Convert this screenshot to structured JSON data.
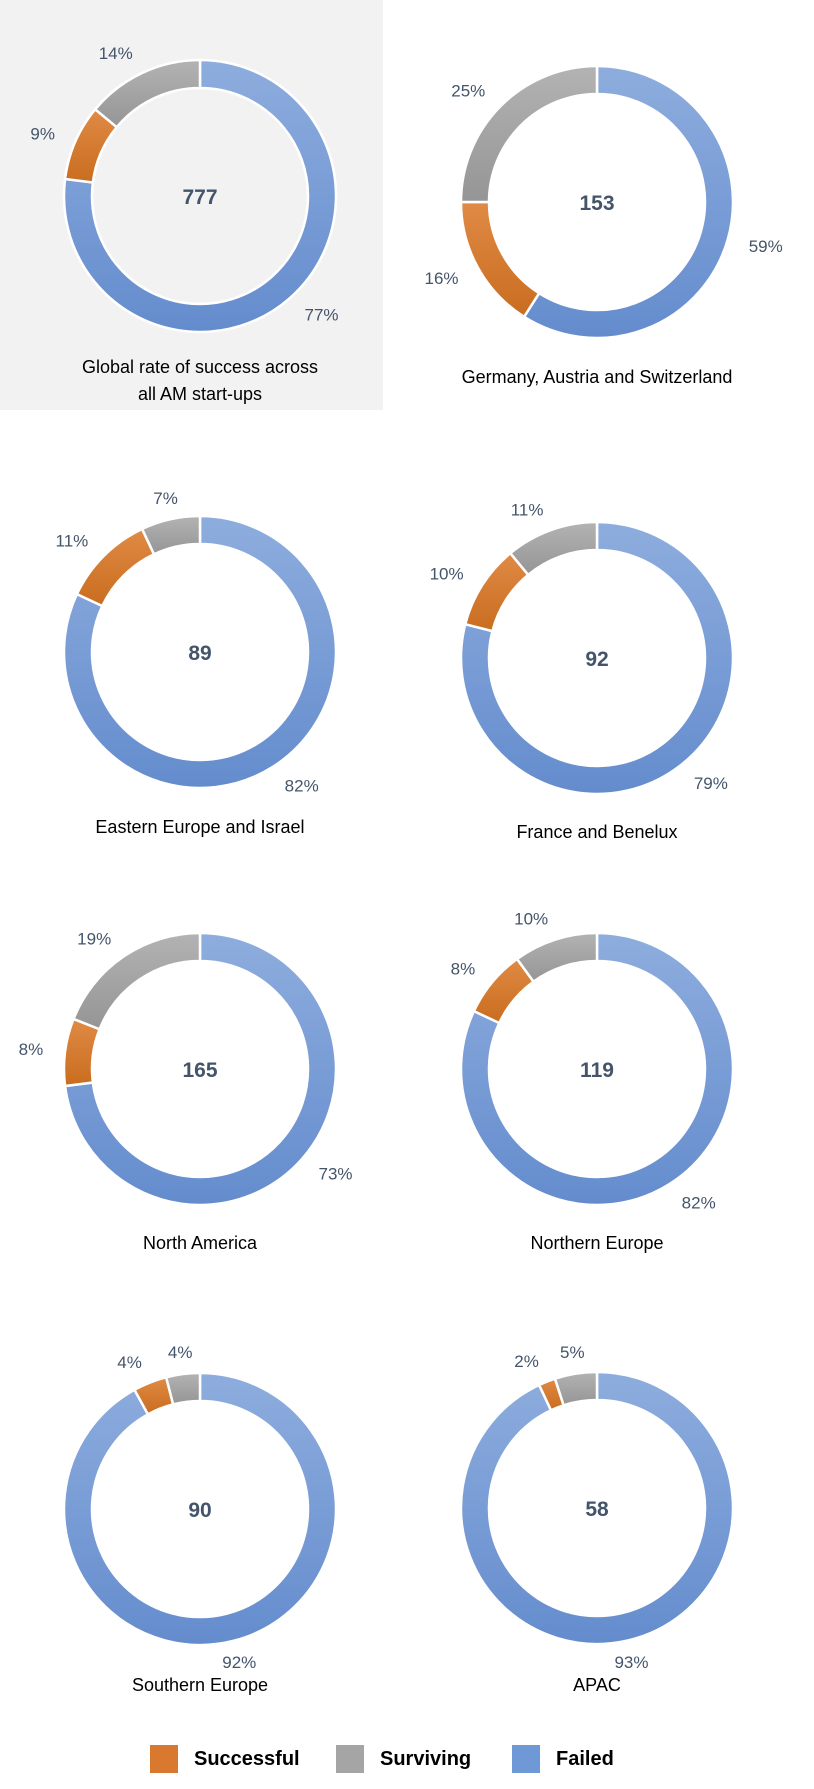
{
  "chart_data": [
    {
      "type": "pie",
      "title": "Global rate of success across all AM start-ups",
      "total": "777",
      "categories": [
        "Failed",
        "Successful",
        "Surviving"
      ],
      "values": [
        77,
        9,
        14
      ],
      "labels": [
        "77%",
        "9%",
        "14%"
      ]
    },
    {
      "type": "pie",
      "title": "Germany, Austria and Switzerland",
      "total": "153",
      "categories": [
        "Failed",
        "Successful",
        "Surviving"
      ],
      "values": [
        59,
        16,
        25
      ],
      "labels": [
        "59%",
        "16%",
        "25%"
      ]
    },
    {
      "type": "pie",
      "title": "Eastern Europe and Israel",
      "total": "89",
      "categories": [
        "Failed",
        "Successful",
        "Surviving"
      ],
      "values": [
        82,
        11,
        7
      ],
      "labels": [
        "82%",
        "11%",
        "7%"
      ]
    },
    {
      "type": "pie",
      "title": "France and Benelux",
      "total": "92",
      "categories": [
        "Failed",
        "Successful",
        "Surviving"
      ],
      "values": [
        79,
        10,
        11
      ],
      "labels": [
        "79%",
        "10%",
        "11%"
      ]
    },
    {
      "type": "pie",
      "title": "North America",
      "total": "165",
      "categories": [
        "Failed",
        "Successful",
        "Surviving"
      ],
      "values": [
        73,
        8,
        19
      ],
      "labels": [
        "73%",
        "8%",
        "19%"
      ]
    },
    {
      "type": "pie",
      "title": "Northern Europe",
      "total": "119",
      "categories": [
        "Failed",
        "Successful",
        "Surviving"
      ],
      "values": [
        82,
        8,
        10
      ],
      "labels": [
        "82%",
        "8%",
        "10%"
      ]
    },
    {
      "type": "pie",
      "title": "Southern Europe",
      "total": "90",
      "categories": [
        "Failed",
        "Successful",
        "Surviving"
      ],
      "values": [
        92,
        4,
        4
      ],
      "labels": [
        "92%",
        "4%",
        "4%"
      ]
    },
    {
      "type": "pie",
      "title": "APAC",
      "total": "58",
      "categories": [
        "Failed",
        "Successful",
        "Surviving"
      ],
      "values": [
        93,
        2,
        5
      ],
      "labels": [
        "93%",
        "2%",
        "5%"
      ]
    }
  ],
  "legend": [
    {
      "label": "Successful",
      "color": "#d9782f"
    },
    {
      "label": "Surviving",
      "color": "#a5a5a5"
    },
    {
      "label": "Failed",
      "color": "#6f98d6"
    }
  ],
  "colors": {
    "Failed": "#6f98d6",
    "Successful": "#d9782f",
    "Surviving": "#a5a5a5"
  }
}
